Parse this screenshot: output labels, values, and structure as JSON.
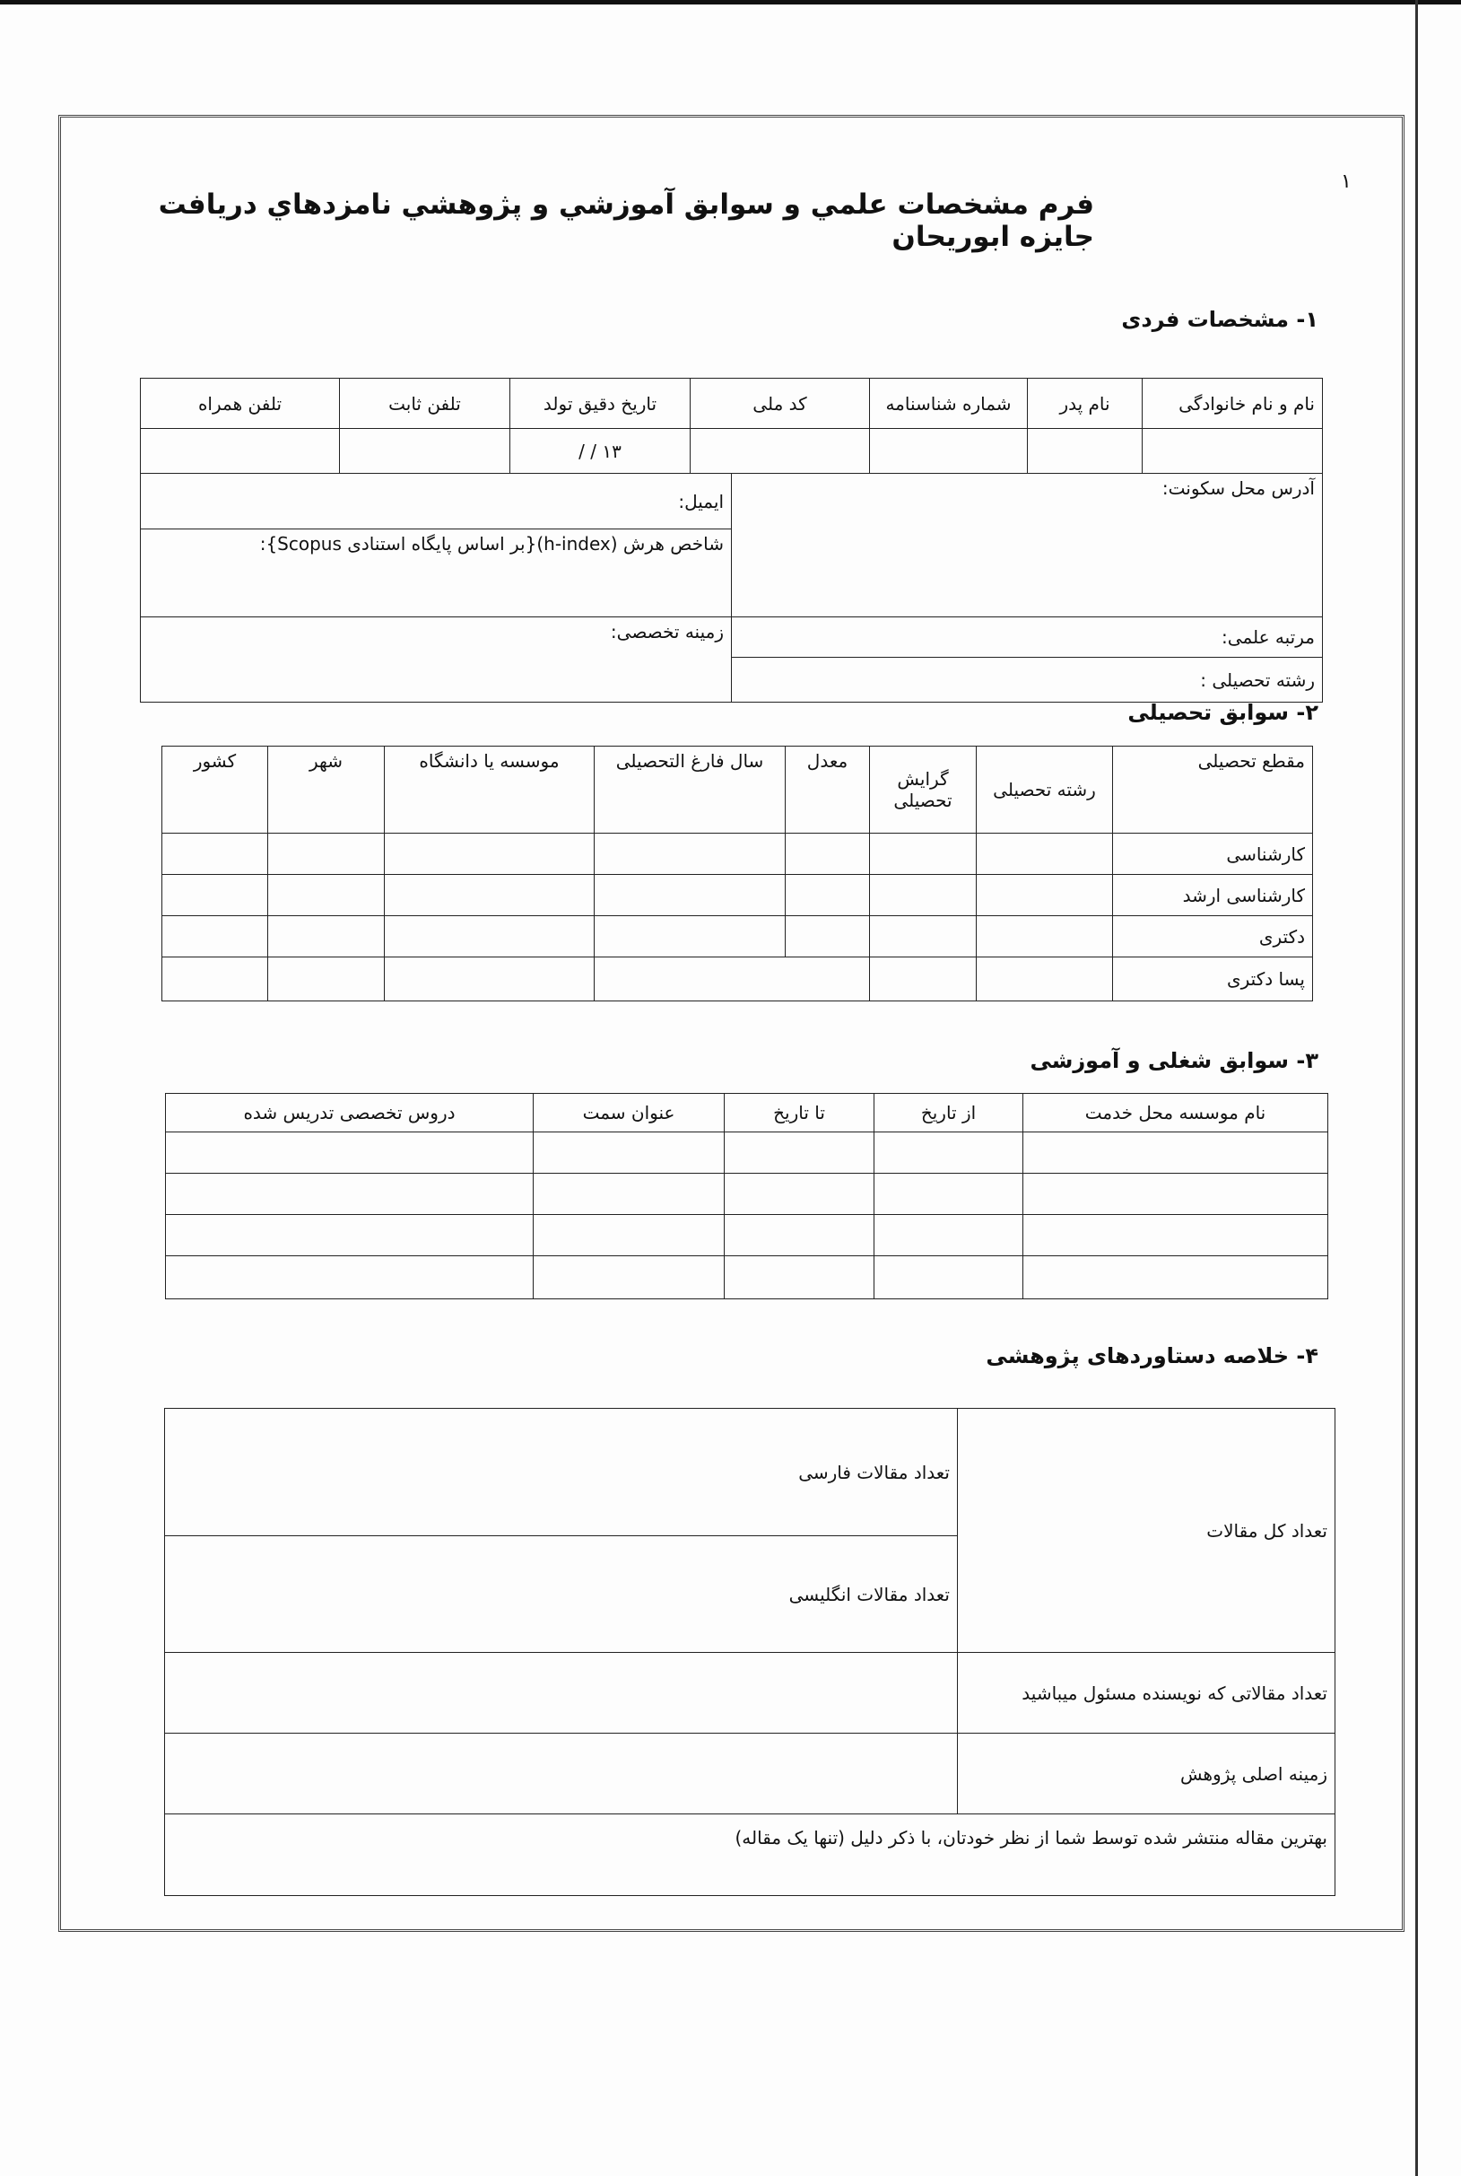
{
  "page_number": "۱",
  "title": "فرم مشخصات علمي و سوابق آموزشي و پژوهشي نامزدهاي دريافت جايزه ابوريحان",
  "section1": {
    "heading": "۱-   مشخصات فردی",
    "columns": [
      "نام و نام خانوادگی",
      "نام پدر",
      "شماره شناسنامه",
      "کد ملی",
      "تاریخ دقیق تولد",
      "تلفن ثابت",
      "تلفن همراه"
    ],
    "birth_date_template": "۱۳   /   /",
    "address_label": "آدرس محل سکونت:",
    "email_label": "ایمیل:",
    "hindex_label": "شاخص هرش (h-index){بر اساس پایگاه استنادی Scopus}:",
    "rank_label": "مرتبه علمی:",
    "field_label": "رشته تحصیلی :",
    "specialty_label": "زمینه تخصصی:"
  },
  "section2": {
    "heading": "۲-  سوابق تحصیلی",
    "columns": [
      "مقطع تحصیلی",
      "رشته تحصیلی",
      "گرایش تحصیلی",
      "معدل",
      "سال فارغ التحصیلی",
      "موسسه یا دانشگاه",
      "شهر",
      "کشور"
    ],
    "rows": [
      "کارشناسی",
      "کارشناسی ارشد",
      "دکتری",
      "پسا دکتری"
    ]
  },
  "section3": {
    "heading": "۳-  سوابق شغلی و آموزشی",
    "columns": [
      "نام موسسه محل خدمت",
      "از تاریخ",
      "تا تاریخ",
      "عنوان سمت",
      "دروس تخصصی تدریس شده"
    ]
  },
  "section4": {
    "heading": "۴-   خلاصه دستاوردهای پژوهشی",
    "total_articles": "تعداد کل مقالات",
    "persian_articles": "تعداد مقالات فارسی",
    "english_articles": "تعداد مقالات انگلیسی",
    "corresponding_author": "تعداد مقالاتی که نویسنده مسئول میباشید",
    "main_research_field": "زمینه اصلی پژوهش",
    "best_article": "بهترین مقاله منتشر شده توسط شما از نظر خودتان، با ذکر دلیل (تنها یک مقاله)"
  }
}
